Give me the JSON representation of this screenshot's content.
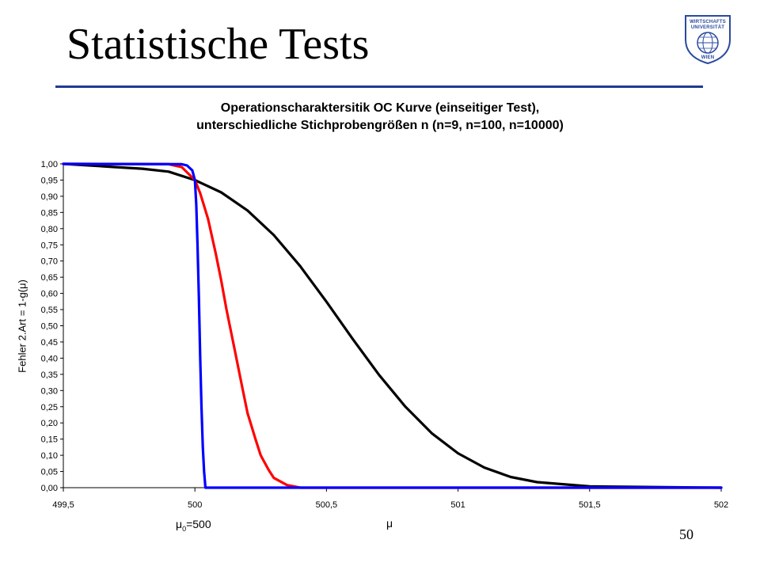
{
  "slide": {
    "title": "Statistische Tests",
    "page_number": "50",
    "logo_text": [
      "WIRTSCHAFTS",
      "UNIVERSITÄT",
      "WIEN"
    ]
  },
  "annotation": {
    "mu0_symbol": "μ",
    "mu0_subscript": "0",
    "mu0_value": "=500"
  },
  "colors": {
    "n9": "#000000",
    "n100": "#ff0000",
    "n10000": "#0000ff",
    "title_rule": "#1f3a93"
  },
  "chart_data": {
    "type": "line",
    "title": "Operationscharaktersitik OC Kurve (einseitiger Test),",
    "subtitle": "unterschiedliche Stichprobengrößen n (n=9, n=100, n=10000)",
    "xlabel": "μ",
    "ylabel": "Fehler 2.Art = 1-g(μ)",
    "xlim": [
      499.5,
      502
    ],
    "ylim": [
      0,
      1
    ],
    "x_ticks": [
      499.5,
      500,
      500.5,
      501,
      501.5,
      502
    ],
    "x_tick_labels": [
      "499,5",
      "500",
      "500,5",
      "501",
      "501,5",
      "502"
    ],
    "y_ticks": [
      0,
      0.05,
      0.1,
      0.15,
      0.2,
      0.25,
      0.3,
      0.35,
      0.4,
      0.45,
      0.5,
      0.55,
      0.6,
      0.65,
      0.7,
      0.75,
      0.8,
      0.85,
      0.9,
      0.95,
      1
    ],
    "y_tick_labels": [
      "0,00",
      "0,05",
      "0,10",
      "0,15",
      "0,20",
      "0,25",
      "0,30",
      "0,35",
      "0,40",
      "0,45",
      "0,50",
      "0,55",
      "0,60",
      "0,65",
      "0,70",
      "0,75",
      "0,80",
      "0,85",
      "0,90",
      "0,95",
      "1,00"
    ],
    "grid": false,
    "legend": "none",
    "series": [
      {
        "key": "n9",
        "x": [
          499.5,
          499.7,
          499.8,
          499.9,
          500.0,
          500.1,
          500.2,
          500.3,
          500.4,
          500.5,
          500.6,
          500.7,
          500.8,
          500.9,
          501.0,
          501.1,
          501.2,
          501.3,
          501.5,
          502.0
        ],
        "y": [
          1.0,
          0.99,
          0.985,
          0.976,
          0.95,
          0.912,
          0.856,
          0.78,
          0.684,
          0.574,
          0.459,
          0.348,
          0.25,
          0.168,
          0.106,
          0.062,
          0.033,
          0.017,
          0.004,
          0.0
        ]
      },
      {
        "key": "n100",
        "x": [
          499.5,
          499.9,
          499.95,
          500.0,
          500.02,
          500.05,
          500.08,
          500.1,
          500.12,
          500.15,
          500.18,
          500.2,
          500.23,
          500.25,
          500.28,
          500.3,
          500.35,
          500.4,
          500.5,
          502.0
        ],
        "y": [
          1.0,
          0.999,
          0.99,
          0.95,
          0.91,
          0.83,
          0.72,
          0.64,
          0.55,
          0.43,
          0.31,
          0.23,
          0.15,
          0.1,
          0.055,
          0.03,
          0.008,
          0.0,
          0.0,
          0.0
        ]
      },
      {
        "key": "n10000",
        "x": [
          499.5,
          499.95,
          499.97,
          499.99,
          500.0,
          500.005,
          500.01,
          500.015,
          500.02,
          500.025,
          500.03,
          500.035,
          500.04,
          500.05,
          500.1,
          500.2,
          502.0
        ],
        "y": [
          1.0,
          0.999,
          0.995,
          0.98,
          0.95,
          0.875,
          0.75,
          0.59,
          0.41,
          0.25,
          0.125,
          0.05,
          0.0,
          0.0,
          0.0,
          0.0,
          0.0
        ]
      }
    ]
  }
}
